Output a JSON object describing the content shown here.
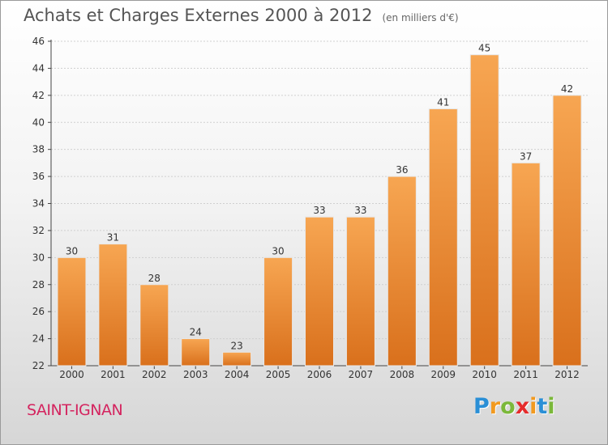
{
  "header": {
    "title": "Achats et Charges Externes 2000 à 2012",
    "subtitle": "(en milliers d'€)"
  },
  "footer": {
    "city": "SAINT-IGNAN",
    "brand_letters": [
      "P",
      "r",
      "o",
      "x",
      "i",
      "t",
      "i"
    ],
    "brand_colors": [
      "#2a8fd6",
      "#f29a1f",
      "#7bb83a",
      "#e52b2b",
      "#f29a1f",
      "#2a8fd6",
      "#7bb83a"
    ]
  },
  "chart_data": {
    "type": "bar",
    "categories": [
      "2000",
      "2001",
      "2002",
      "2003",
      "2004",
      "2005",
      "2006",
      "2007",
      "2008",
      "2009",
      "2010",
      "2011",
      "2012"
    ],
    "values": [
      30,
      31,
      28,
      24,
      23,
      30,
      33,
      33,
      36,
      41,
      45,
      37,
      42
    ],
    "ylim": [
      22,
      46
    ],
    "yticks": [
      22,
      24,
      26,
      28,
      30,
      32,
      34,
      36,
      38,
      40,
      42,
      44,
      46
    ],
    "grid": true,
    "bar_color": "#f0923a"
  }
}
